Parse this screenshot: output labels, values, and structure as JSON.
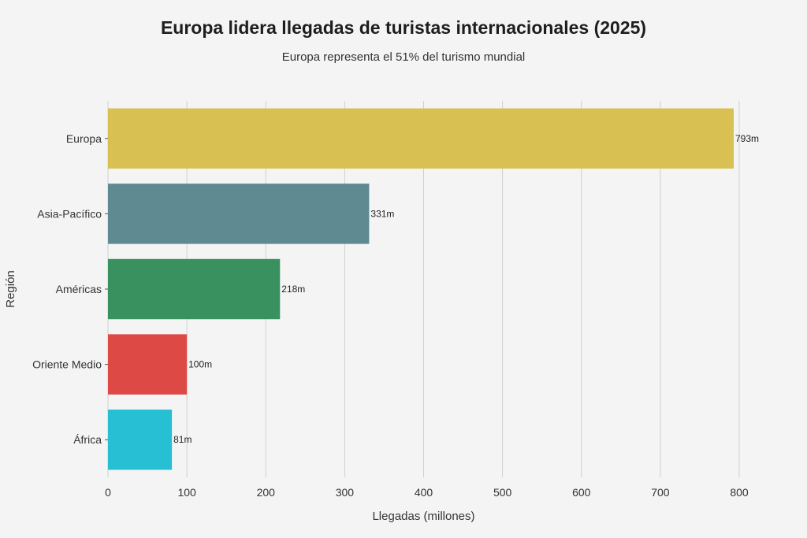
{
  "chart_data": {
    "type": "bar",
    "orientation": "horizontal",
    "title": "Europa lidera llegadas de turistas internacionales (2025)",
    "subtitle": "Europa representa el 51% del turismo mundial",
    "xlabel": "Llegadas (millones)",
    "ylabel": "Región",
    "xlim": [
      0,
      800
    ],
    "xticks": [
      0,
      100,
      200,
      300,
      400,
      500,
      600,
      700,
      800
    ],
    "grid": "vertical",
    "categories": [
      "Europa",
      "Asia-Pacífico",
      "Américas",
      "Oriente Medio",
      "África"
    ],
    "values": [
      793,
      331,
      218,
      100,
      81
    ],
    "labels": [
      "793m",
      "331m",
      "218m",
      "100m",
      "81m"
    ],
    "colors": [
      "#d8c052",
      "#5f8a92",
      "#3a9160",
      "#dd4a45",
      "#27bfd3"
    ]
  }
}
